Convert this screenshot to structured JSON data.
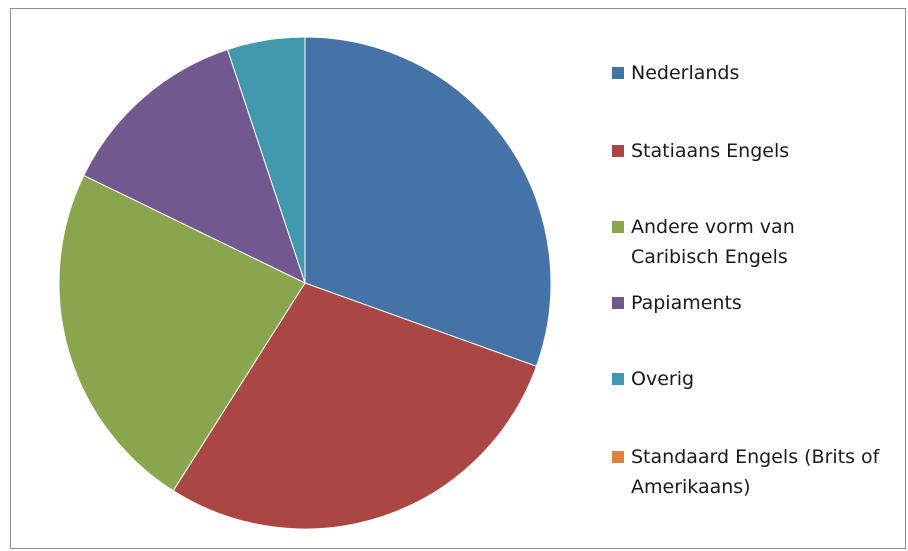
{
  "chart_data": {
    "type": "pie",
    "categories": [
      "Nederlands",
      "Statiaans Engels",
      "Andere vorm van\nCaribisch Engels",
      "Papiaments",
      "Overig",
      "Standaard Engels (Brits of\nAmerikaans)"
    ],
    "values": [
      30.5,
      28.5,
      23.2,
      12.7,
      5.1,
      0.0
    ],
    "colors": [
      "#4572A7",
      "#AA4643",
      "#89A54E",
      "#71588F",
      "#4198AF",
      "#DB843D"
    ],
    "legend_position": "right",
    "start_angle": "top",
    "direction": "clockwise"
  }
}
